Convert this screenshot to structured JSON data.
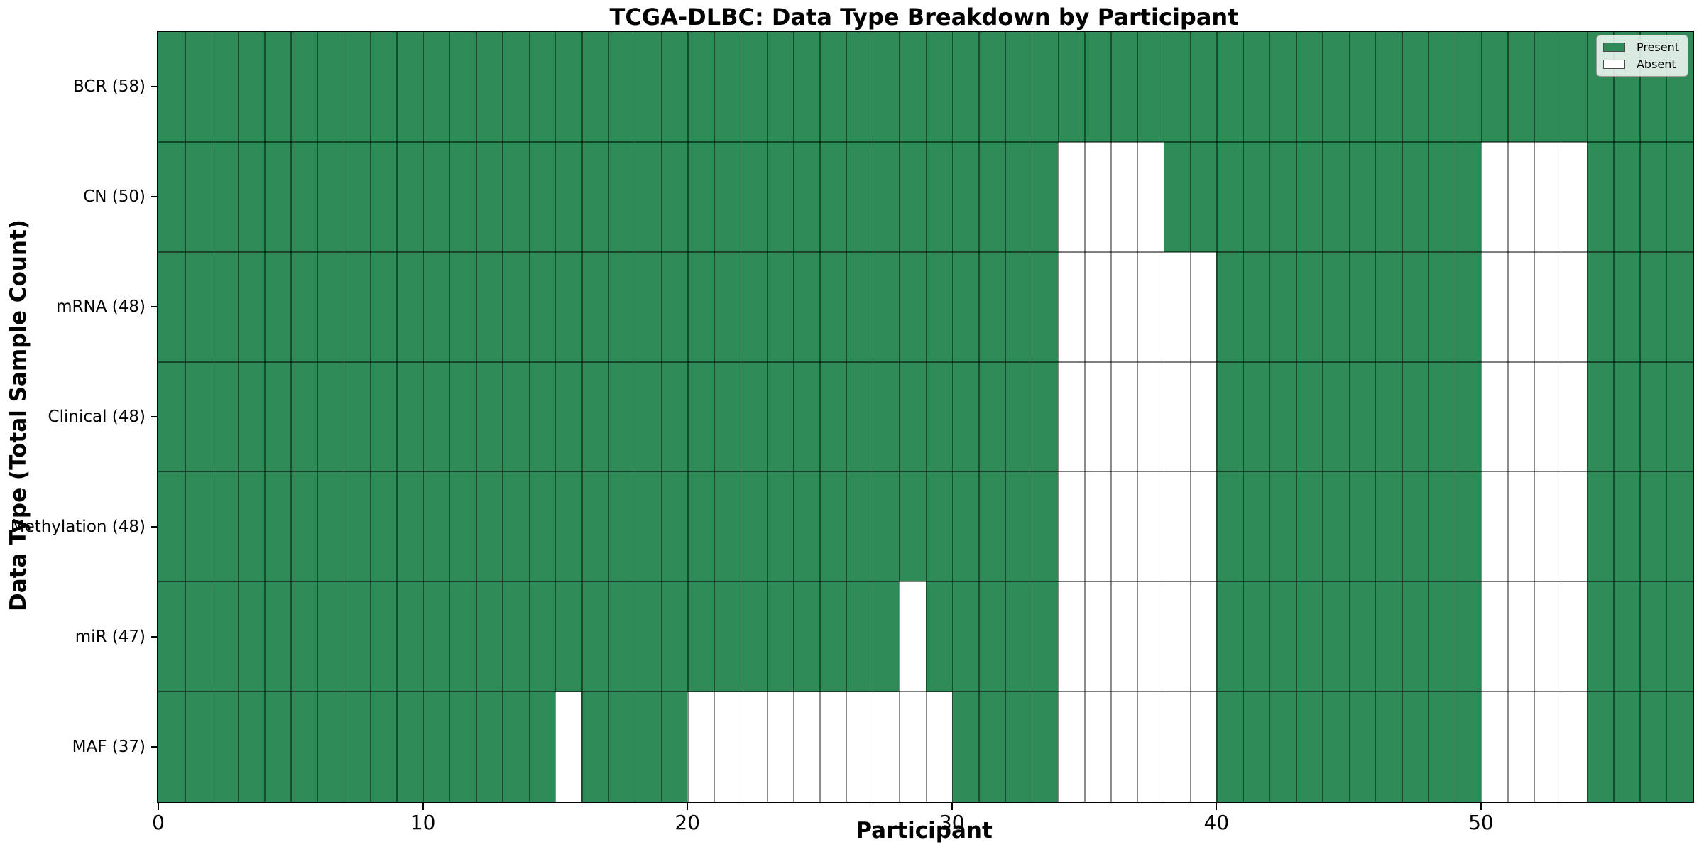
{
  "chart_data": {
    "type": "heatmap",
    "title": "TCGA-DLBC: Data Type Breakdown by Participant",
    "xlabel": "Participant",
    "ylabel": "Data Type (Total Sample Count)",
    "n_participants": 58,
    "x_ticks": [
      0,
      10,
      20,
      30,
      40,
      50
    ],
    "value_encoding": {
      "present": 1,
      "absent": 0
    },
    "colors": {
      "present": "#2e8b57",
      "absent": "#ffffff"
    },
    "legend": [
      {
        "label": "Present",
        "color": "#2e8b57"
      },
      {
        "label": "Absent",
        "color": "#ffffff"
      }
    ],
    "legend_position": "upper right",
    "grid": true,
    "rows": [
      {
        "label": "BCR (58)",
        "name": "BCR",
        "total": 58,
        "absent": []
      },
      {
        "label": "CN (50)",
        "name": "CN",
        "total": 50,
        "absent": [
          34,
          35,
          36,
          37,
          50,
          51,
          52,
          53
        ]
      },
      {
        "label": "mRNA (48)",
        "name": "mRNA",
        "total": 48,
        "absent": [
          34,
          35,
          36,
          37,
          38,
          39,
          50,
          51,
          52,
          53
        ]
      },
      {
        "label": "Clinical (48)",
        "name": "Clinical",
        "total": 48,
        "absent": [
          34,
          35,
          36,
          37,
          38,
          39,
          50,
          51,
          52,
          53
        ]
      },
      {
        "label": "Methylation (48)",
        "name": "Methylation",
        "total": 48,
        "absent": [
          34,
          35,
          36,
          37,
          38,
          39,
          50,
          51,
          52,
          53
        ]
      },
      {
        "label": "miR (47)",
        "name": "miR",
        "total": 47,
        "absent": [
          28,
          34,
          35,
          36,
          37,
          38,
          39,
          50,
          51,
          52,
          53
        ]
      },
      {
        "label": "MAF (37)",
        "name": "MAF",
        "total": 37,
        "absent": [
          15,
          20,
          21,
          22,
          23,
          24,
          25,
          26,
          27,
          28,
          29,
          34,
          35,
          36,
          37,
          38,
          39,
          50,
          51,
          52,
          53
        ]
      }
    ]
  }
}
